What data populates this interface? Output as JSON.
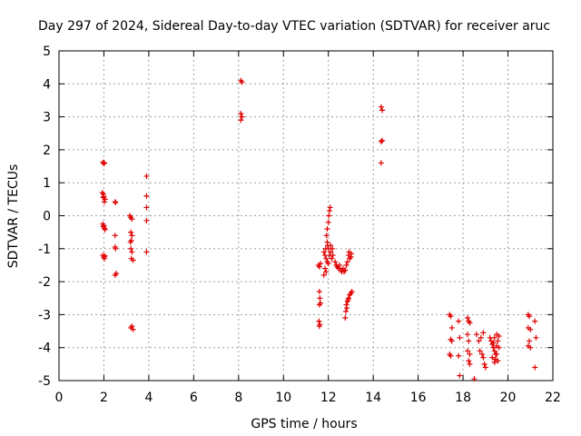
{
  "chart_data": {
    "type": "scatter",
    "title": "Day 297 of 2024, Sidereal Day-to-day VTEC variation (SDTVAR) for receiver aruc",
    "xlabel": "GPS time / hours",
    "ylabel": "SDTVAR / TECUs",
    "xlim": [
      0,
      22
    ],
    "ylim": [
      -5,
      5
    ],
    "xticks": [
      0,
      2,
      4,
      6,
      8,
      10,
      12,
      14,
      16,
      18,
      20,
      22
    ],
    "yticks": [
      -5,
      -4,
      -3,
      -2,
      -1,
      0,
      1,
      2,
      3,
      4,
      5
    ],
    "grid": true,
    "marker": "+",
    "series": [
      {
        "name": "SDTVAR",
        "color": "#e00000",
        "points": [
          [
            1.95,
            1.62
          ],
          [
            2.0,
            1.58
          ],
          [
            2.02,
            1.6
          ],
          [
            1.93,
            0.7
          ],
          [
            1.98,
            0.65
          ],
          [
            2.0,
            0.58
          ],
          [
            2.05,
            0.5
          ],
          [
            2.02,
            0.42
          ],
          [
            1.97,
            0.55
          ],
          [
            1.95,
            -0.25
          ],
          [
            2.0,
            -0.3
          ],
          [
            2.02,
            -0.38
          ],
          [
            2.05,
            -0.42
          ],
          [
            1.98,
            -0.33
          ],
          [
            1.95,
            -1.2
          ],
          [
            2.0,
            -1.25
          ],
          [
            2.02,
            -1.3
          ],
          [
            2.05,
            -1.22
          ],
          [
            2.5,
            0.42
          ],
          [
            2.52,
            0.4
          ],
          [
            2.5,
            -0.6
          ],
          [
            2.5,
            -0.95
          ],
          [
            2.52,
            -1.0
          ],
          [
            2.55,
            -1.75
          ],
          [
            2.5,
            -1.8
          ],
          [
            3.15,
            0.0
          ],
          [
            3.2,
            -0.05
          ],
          [
            3.25,
            -0.1
          ],
          [
            3.2,
            -0.5
          ],
          [
            3.25,
            -0.6
          ],
          [
            3.22,
            -0.75
          ],
          [
            3.18,
            -0.8
          ],
          [
            3.2,
            -1.0
          ],
          [
            3.25,
            -1.1
          ],
          [
            3.22,
            -1.3
          ],
          [
            3.3,
            -1.35
          ],
          [
            3.2,
            -3.4
          ],
          [
            3.25,
            -3.35
          ],
          [
            3.3,
            -3.45
          ],
          [
            3.9,
            1.2
          ],
          [
            3.9,
            0.6
          ],
          [
            3.9,
            0.25
          ],
          [
            3.9,
            -0.15
          ],
          [
            3.9,
            -1.1
          ],
          [
            8.1,
            4.1
          ],
          [
            8.15,
            4.05
          ],
          [
            8.1,
            3.1
          ],
          [
            8.15,
            3.0
          ],
          [
            8.1,
            2.9
          ],
          [
            14.35,
            3.3
          ],
          [
            14.4,
            3.2
          ],
          [
            14.35,
            2.25
          ],
          [
            14.4,
            2.28
          ],
          [
            14.35,
            1.6
          ],
          [
            11.55,
            -1.5
          ],
          [
            11.6,
            -1.55
          ],
          [
            11.65,
            -1.45
          ],
          [
            11.6,
            -2.3
          ],
          [
            11.62,
            -2.5
          ],
          [
            11.65,
            -2.65
          ],
          [
            11.6,
            -2.7
          ],
          [
            11.58,
            -3.2
          ],
          [
            11.62,
            -3.3
          ],
          [
            11.6,
            -3.35
          ],
          [
            11.8,
            -1.1
          ],
          [
            11.85,
            -1.2
          ],
          [
            11.9,
            -1.3
          ],
          [
            11.95,
            -1.4
          ],
          [
            11.85,
            -1.6
          ],
          [
            11.8,
            -1.8
          ],
          [
            11.9,
            -1.7
          ],
          [
            11.92,
            -0.6
          ],
          [
            11.95,
            -0.4
          ],
          [
            12.0,
            -0.2
          ],
          [
            12.02,
            0.0
          ],
          [
            12.05,
            0.15
          ],
          [
            12.08,
            0.25
          ],
          [
            11.95,
            -0.8
          ],
          [
            12.0,
            -1.0
          ],
          [
            12.05,
            -1.2
          ],
          [
            12.1,
            -1.1
          ],
          [
            12.15,
            -1.3
          ],
          [
            12.2,
            -1.2
          ],
          [
            12.0,
            -1.45
          ],
          [
            11.88,
            -1.0
          ],
          [
            11.97,
            -0.9
          ],
          [
            12.1,
            -0.9
          ],
          [
            12.18,
            -1.0
          ],
          [
            12.3,
            -1.4
          ],
          [
            12.35,
            -1.5
          ],
          [
            12.4,
            -1.55
          ],
          [
            12.45,
            -1.6
          ],
          [
            12.5,
            -1.5
          ],
          [
            12.55,
            -1.65
          ],
          [
            12.6,
            -1.7
          ],
          [
            12.65,
            -1.6
          ],
          [
            12.7,
            -1.7
          ],
          [
            12.75,
            -1.65
          ],
          [
            12.8,
            -1.5
          ],
          [
            12.85,
            -1.4
          ],
          [
            12.9,
            -1.2
          ],
          [
            12.95,
            -1.3
          ],
          [
            13.0,
            -1.25
          ],
          [
            12.92,
            -1.1
          ],
          [
            13.02,
            -1.15
          ],
          [
            12.75,
            -3.1
          ],
          [
            12.78,
            -2.9
          ],
          [
            12.8,
            -2.7
          ],
          [
            12.85,
            -2.6
          ],
          [
            12.9,
            -2.5
          ],
          [
            12.95,
            -2.4
          ],
          [
            13.0,
            -2.35
          ],
          [
            13.05,
            -2.3
          ],
          [
            12.82,
            -2.8
          ],
          [
            12.88,
            -2.55
          ],
          [
            17.4,
            -3.0
          ],
          [
            17.45,
            -3.05
          ],
          [
            17.5,
            -3.4
          ],
          [
            17.45,
            -3.75
          ],
          [
            17.5,
            -3.8
          ],
          [
            17.4,
            -4.2
          ],
          [
            17.45,
            -4.25
          ],
          [
            17.8,
            -3.2
          ],
          [
            17.85,
            -3.7
          ],
          [
            17.8,
            -4.25
          ],
          [
            17.85,
            -4.85
          ],
          [
            18.2,
            -3.1
          ],
          [
            18.25,
            -3.2
          ],
          [
            18.3,
            -3.25
          ],
          [
            18.2,
            -3.6
          ],
          [
            18.25,
            -3.8
          ],
          [
            18.2,
            -4.1
          ],
          [
            18.3,
            -4.2
          ],
          [
            18.25,
            -4.4
          ],
          [
            18.3,
            -4.5
          ],
          [
            18.5,
            -4.95
          ],
          [
            18.6,
            -3.6
          ],
          [
            18.7,
            -3.8
          ],
          [
            18.8,
            -3.7
          ],
          [
            18.75,
            -4.1
          ],
          [
            18.85,
            -4.2
          ],
          [
            18.9,
            -4.3
          ],
          [
            18.95,
            -4.5
          ],
          [
            18.9,
            -3.55
          ],
          [
            19.0,
            -4.6
          ],
          [
            19.2,
            -3.7
          ],
          [
            19.25,
            -3.8
          ],
          [
            19.3,
            -3.9
          ],
          [
            19.35,
            -4.0
          ],
          [
            19.4,
            -4.1
          ],
          [
            19.45,
            -4.2
          ],
          [
            19.3,
            -4.3
          ],
          [
            19.4,
            -3.7
          ],
          [
            19.5,
            -3.6
          ],
          [
            19.55,
            -3.8
          ],
          [
            19.6,
            -4.0
          ],
          [
            19.5,
            -4.2
          ],
          [
            19.55,
            -4.4
          ],
          [
            19.45,
            -4.35
          ],
          [
            19.35,
            -3.85
          ],
          [
            19.5,
            -3.95
          ],
          [
            19.6,
            -3.65
          ],
          [
            19.4,
            -4.45
          ],
          [
            20.9,
            -3.0
          ],
          [
            20.95,
            -3.05
          ],
          [
            20.9,
            -3.4
          ],
          [
            21.0,
            -3.45
          ],
          [
            20.95,
            -3.8
          ],
          [
            20.9,
            -3.95
          ],
          [
            21.0,
            -4.0
          ],
          [
            21.2,
            -3.2
          ],
          [
            21.25,
            -3.7
          ],
          [
            21.2,
            -4.6
          ]
        ]
      }
    ]
  }
}
